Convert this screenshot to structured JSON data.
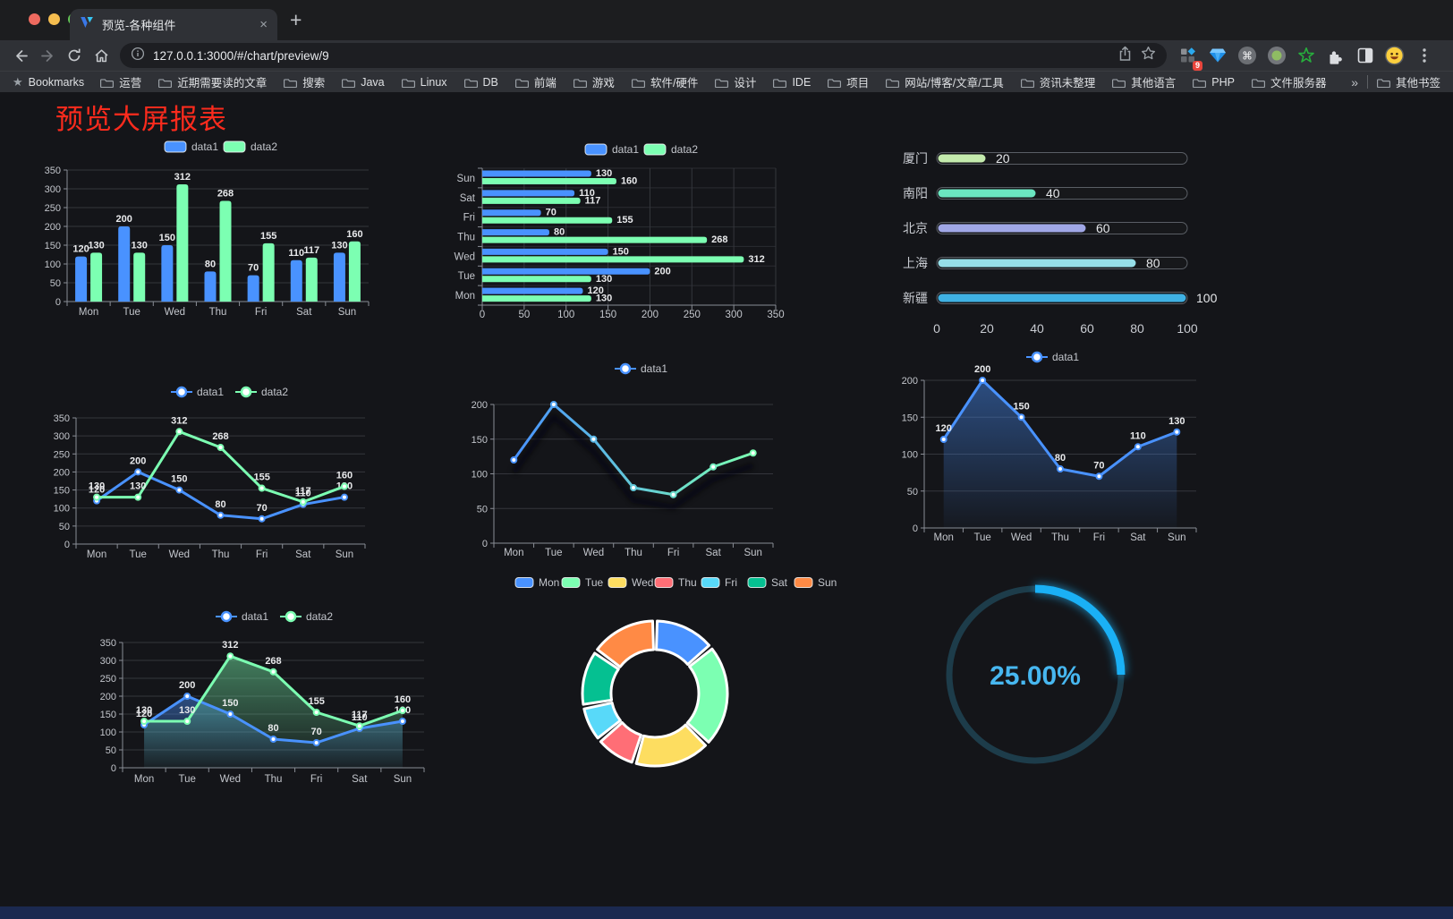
{
  "browser": {
    "tab": {
      "title": "预览-各种组件",
      "close_glyph": "×"
    },
    "new_tab_glyph": "+",
    "url": "127.0.0.1:3000/#/chart/preview/9",
    "extension_badge": "9",
    "extension_icons": [
      "grid-diamond",
      "gem",
      "command",
      "recorder",
      "green-star",
      "puzzle",
      "half-square",
      "emoji-avatar",
      "menu-dots"
    ],
    "bookmarks": {
      "root_label": "Bookmarks",
      "folders": [
        "运营",
        "近期需要读的文章",
        "搜索",
        "Java",
        "Linux",
        "DB",
        "前端",
        "游戏",
        "软件/硬件",
        "设计",
        "IDE",
        "项目",
        "网站/博客/文章/工具",
        "资讯未整理",
        "其他语言",
        "PHP",
        "文件服务器"
      ],
      "overflow_glyph": "»",
      "other_label": "其他书签"
    }
  },
  "page": {
    "title": "预览大屏报表",
    "title_color": "#fb2b1d",
    "background": "#141519",
    "bottom_strip_color": "#1b2950"
  },
  "chart_data": [
    {
      "id": "c1",
      "type": "bar",
      "title": "",
      "legend_entries": [
        "data1",
        "data2"
      ],
      "categories": [
        "Mon",
        "Tue",
        "Wed",
        "Thu",
        "Fri",
        "Sat",
        "Sun"
      ],
      "series": [
        {
          "name": "data1",
          "color": "#4992ff",
          "values": [
            120,
            200,
            150,
            80,
            70,
            110,
            130
          ]
        },
        {
          "name": "data2",
          "color": "#7cffb2",
          "values": [
            130,
            130,
            312,
            268,
            155,
            117,
            160
          ]
        }
      ],
      "ylim": [
        0,
        350
      ],
      "ystep": 50,
      "grid": true,
      "legend_position": "top-center"
    },
    {
      "id": "c2",
      "type": "bar-horizontal",
      "title": "",
      "legend_entries": [
        "data1",
        "data2"
      ],
      "categories": [
        "Mon",
        "Tue",
        "Wed",
        "Thu",
        "Fri",
        "Sat",
        "Sun"
      ],
      "series": [
        {
          "name": "data1",
          "color": "#4992ff",
          "values": [
            120,
            200,
            150,
            80,
            70,
            110,
            130
          ]
        },
        {
          "name": "data2",
          "color": "#7cffb2",
          "values": [
            130,
            130,
            312,
            268,
            155,
            117,
            160
          ]
        }
      ],
      "xlim": [
        0,
        350
      ],
      "xstep": 50,
      "grid": true,
      "legend_position": "top-center"
    },
    {
      "id": "c3",
      "type": "progress",
      "rows": [
        {
          "label": "厦门",
          "value": 20,
          "color": "#c4ebad"
        },
        {
          "label": "南阳",
          "value": 40,
          "color": "#6be6c1"
        },
        {
          "label": "北京",
          "value": 60,
          "color": "#a0a7e6"
        },
        {
          "label": "上海",
          "value": 80,
          "color": "#96dee8"
        },
        {
          "label": "新疆",
          "value": 100,
          "color": "#3fb1e3"
        }
      ],
      "xticks": [
        0,
        20,
        40,
        60,
        80,
        100
      ],
      "xlim": [
        0,
        100
      ]
    },
    {
      "id": "c4",
      "type": "line",
      "title": "",
      "legend_entries": [
        "data1",
        "data2"
      ],
      "point_labels": true,
      "categories": [
        "Mon",
        "Tue",
        "Wed",
        "Thu",
        "Fri",
        "Sat",
        "Sun"
      ],
      "series": [
        {
          "name": "data1",
          "color": "#4992ff",
          "values": [
            120,
            200,
            150,
            80,
            70,
            110,
            130
          ]
        },
        {
          "name": "data2",
          "color": "#7cffb2",
          "values": [
            130,
            130,
            312,
            268,
            155,
            117,
            160
          ]
        }
      ],
      "ylim": [
        0,
        350
      ],
      "ystep": 50,
      "grid": true,
      "legend_position": "top-center"
    },
    {
      "id": "c5",
      "type": "line-gradient",
      "title": "",
      "legend_entries": [
        "data1"
      ],
      "point_labels": false,
      "shadow": true,
      "categories": [
        "Mon",
        "Tue",
        "Wed",
        "Thu",
        "Fri",
        "Sat",
        "Sun"
      ],
      "series": [
        {
          "name": "data1",
          "gradient": [
            "#4992ff",
            "#7cffb2"
          ],
          "values": [
            120,
            200,
            150,
            80,
            70,
            110,
            130
          ]
        }
      ],
      "ylim": [
        0,
        200
      ],
      "ystep": 50,
      "grid": true,
      "legend_position": "top-center"
    },
    {
      "id": "c6",
      "type": "line-area",
      "title": "",
      "legend_entries": [
        "data1"
      ],
      "point_labels": true,
      "categories": [
        "Mon",
        "Tue",
        "Wed",
        "Thu",
        "Fri",
        "Sat",
        "Sun"
      ],
      "series": [
        {
          "name": "data1",
          "color": "#4992ff",
          "area": true,
          "values": [
            120,
            200,
            150,
            80,
            70,
            110,
            130
          ]
        }
      ],
      "ylim": [
        0,
        200
      ],
      "ystep": 50,
      "grid": true,
      "legend_position": "top-center"
    },
    {
      "id": "c7",
      "type": "line-area",
      "title": "",
      "legend_entries": [
        "data1",
        "data2"
      ],
      "point_labels": true,
      "categories": [
        "Mon",
        "Tue",
        "Wed",
        "Thu",
        "Fri",
        "Sat",
        "Sun"
      ],
      "series": [
        {
          "name": "data1",
          "color": "#4992ff",
          "area": true,
          "values": [
            120,
            200,
            150,
            80,
            70,
            110,
            130
          ]
        },
        {
          "name": "data2",
          "color": "#7cffb2",
          "area": true,
          "values": [
            130,
            130,
            312,
            268,
            155,
            117,
            160
          ]
        }
      ],
      "ylim": [
        0,
        350
      ],
      "ystep": 50,
      "grid": true,
      "legend_position": "top-center"
    },
    {
      "id": "c8",
      "type": "donut",
      "title": "",
      "legend_position": "top-center",
      "categories": [
        "Mon",
        "Tue",
        "Wed",
        "Thu",
        "Fri",
        "Sat",
        "Sun"
      ],
      "values": [
        120,
        200,
        150,
        80,
        70,
        110,
        130
      ],
      "colors": [
        "#4992ff",
        "#7cffb2",
        "#fddd60",
        "#ff6e76",
        "#58d9f9",
        "#05c091",
        "#ff8a45"
      ]
    },
    {
      "id": "c9",
      "type": "gauge",
      "percent": 25,
      "label": "25.00%",
      "color": "#1ab0f5",
      "track_color": "#1d3c4a",
      "text_color": "#47b7f0"
    }
  ]
}
